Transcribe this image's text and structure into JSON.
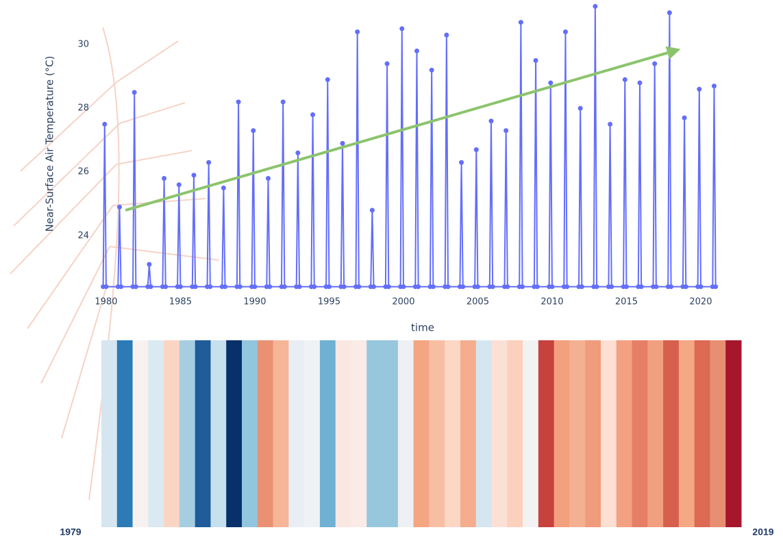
{
  "chart_data": [
    {
      "type": "line",
      "y_label": "Near-Surface Air Temperature (°C)",
      "x_label": "time",
      "color": "#636efa",
      "x": [
        1979.8,
        1979.9,
        1980,
        1980.8,
        1980.9,
        1981,
        1981.8,
        1981.9,
        1982,
        1982.8,
        1982.9,
        1983,
        1983.8,
        1983.9,
        1984,
        1984.8,
        1984.9,
        1985,
        1985.8,
        1985.9,
        1986,
        1986.8,
        1986.9,
        1987,
        1987.8,
        1987.9,
        1988,
        1988.8,
        1988.9,
        1989,
        1989.8,
        1989.9,
        1990,
        1990.8,
        1990.9,
        1991,
        1991.8,
        1991.9,
        1992,
        1992.8,
        1992.9,
        1993,
        1993.8,
        1993.9,
        1994,
        1994.8,
        1994.9,
        1995,
        1995.8,
        1995.9,
        1996,
        1996.8,
        1996.9,
        1997,
        1997.8,
        1997.9,
        1998,
        1998.8,
        1998.9,
        1999,
        1999.8,
        1999.9,
        2000,
        2000.8,
        2000.9,
        2001,
        2001.8,
        2001.9,
        2002,
        2002.8,
        2002.9,
        2003,
        2003.8,
        2003.9,
        2004,
        2004.8,
        2004.9,
        2005,
        2005.8,
        2005.9,
        2006,
        2006.8,
        2006.9,
        2007,
        2007.8,
        2007.9,
        2008,
        2008.8,
        2008.9,
        2009,
        2009.8,
        2009.9,
        2010,
        2010.8,
        2010.9,
        2011,
        2011.8,
        2011.9,
        2012,
        2012.8,
        2012.9,
        2013,
        2013.8,
        2013.9,
        2014,
        2014.8,
        2014.9,
        2015,
        2015.8,
        2015.9,
        2016,
        2016.8,
        2016.9,
        2017,
        2017.8,
        2017.9,
        2018,
        2018.8,
        2018.9,
        2019,
        2019.8,
        2019.9,
        2020,
        2020.8,
        2020.9,
        2021
      ],
      "values": [
        22.4,
        27.5,
        22.4,
        22.4,
        24.9,
        22.4,
        22.4,
        28.5,
        22.4,
        22.4,
        23.1,
        22.4,
        22.4,
        25.8,
        22.4,
        22.4,
        25.6,
        22.4,
        22.4,
        25.9,
        22.4,
        22.4,
        26.3,
        22.4,
        22.4,
        25.5,
        22.4,
        22.4,
        28.2,
        22.4,
        22.4,
        27.3,
        22.4,
        22.4,
        25.8,
        22.4,
        22.4,
        28.2,
        22.4,
        22.4,
        26.6,
        22.4,
        22.4,
        27.8,
        22.4,
        22.4,
        28.9,
        22.4,
        22.4,
        26.9,
        22.4,
        22.4,
        30.4,
        22.4,
        22.4,
        24.8,
        22.4,
        22.4,
        29.4,
        22.4,
        22.4,
        30.5,
        22.4,
        22.4,
        29.8,
        22.4,
        22.4,
        29.2,
        22.4,
        22.4,
        30.3,
        22.4,
        22.4,
        26.3,
        22.4,
        22.4,
        26.7,
        22.4,
        22.4,
        27.6,
        22.4,
        22.4,
        27.3,
        22.4,
        22.4,
        30.7,
        22.4,
        22.4,
        29.5,
        22.4,
        22.4,
        28.8,
        22.4,
        22.4,
        30.4,
        22.4,
        22.4,
        28.0,
        22.4,
        22.4,
        31.2,
        22.4,
        22.4,
        27.5,
        22.4,
        22.4,
        28.9,
        22.4,
        22.4,
        28.8,
        22.4,
        22.4,
        29.4,
        22.4,
        22.4,
        31.0,
        22.4,
        22.4,
        27.7,
        22.4,
        22.4,
        28.6,
        22.4,
        22.4,
        28.7,
        22.4
      ],
      "xlim": [
        1979.45,
        2021.8
      ],
      "ylim": [
        22.2,
        31.4
      ],
      "xticks": [
        1980,
        1985,
        1990,
        1995,
        2000,
        2005,
        2010,
        2015,
        2020
      ],
      "yticks": [
        24,
        26,
        28,
        30
      ],
      "grid": false,
      "trend": {
        "x": [
          1981.3,
          2018.2
        ],
        "values": [
          24.8,
          29.8
        ],
        "color": "#8cc46d"
      }
    },
    {
      "type": "stripes",
      "start_label": "1979",
      "end_label": "2019",
      "colors": [
        "#d6e6f1",
        "#2c7bb6",
        "#f7f2ef",
        "#dbe9f2",
        "#fbd5c4",
        "#a6cee3",
        "#1f5c99",
        "#c7e0ee",
        "#08306b",
        "#92c5de",
        "#eb9173",
        "#f6b597",
        "#e8eef3",
        "#eef2f5",
        "#6fb0d3",
        "#f9e7e1",
        "#faebe6",
        "#96c7dc",
        "#96c7dc",
        "#eef0f3",
        "#f4a582",
        "#f8bea4",
        "#fcd7c4",
        "#f4ad8d",
        "#d6e6f0",
        "#fbe1d5",
        "#fbd0bc",
        "#f2f2f2",
        "#c7413d",
        "#f3a07e",
        "#f4b192",
        "#f09b7b",
        "#fde0d3",
        "#f3a182",
        "#e57f66",
        "#f1a07f",
        "#d6604d",
        "#f4a884",
        "#dd6a54",
        "#e88f73",
        "#a6172d"
      ]
    }
  ]
}
